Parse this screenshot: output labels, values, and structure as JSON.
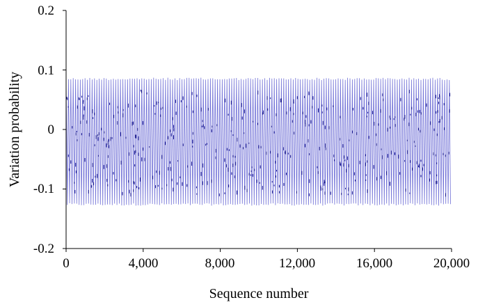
{
  "chart_data": {
    "type": "line",
    "title": "",
    "xlabel": "Sequence number",
    "ylabel": "Variation probability",
    "xlim": [
      0,
      20000
    ],
    "ylim": [
      -0.2,
      0.2
    ],
    "x_ticks": [
      0,
      4000,
      8000,
      12000,
      16000,
      20000
    ],
    "x_tick_labels": [
      "0",
      "4,000",
      "8,000",
      "12,000",
      "16,000",
      "20,000"
    ],
    "y_ticks": [
      0.2,
      0.1,
      0,
      -0.1,
      -0.2
    ],
    "y_tick_labels": [
      "0.2",
      "0.1",
      "0",
      "-0.1",
      "-0.2"
    ],
    "grid": false,
    "legend": "none",
    "series": [
      {
        "x_start": 0,
        "x_end": 20000,
        "y_max": 0.087,
        "y_min": -0.128,
        "color": "#6f6fd6",
        "marker_color": "#1a1a8c"
      }
    ]
  }
}
